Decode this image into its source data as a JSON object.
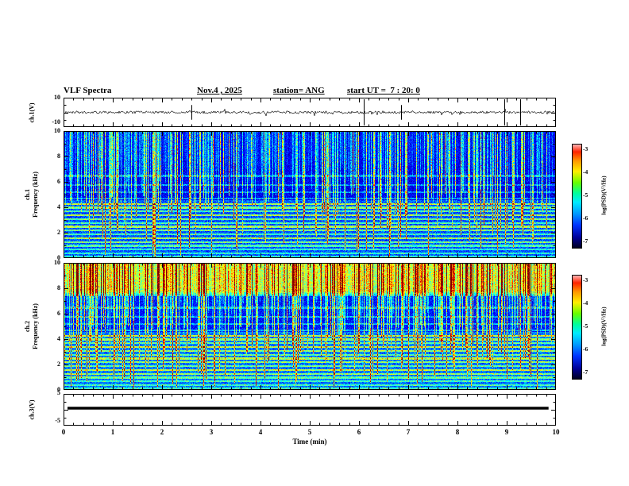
{
  "header": {
    "title": "VLF Spectra",
    "date": "Nov.4 , 2025",
    "station": "station= ANG",
    "start_ut": "start UT =  7 : 20: 0"
  },
  "panels": {
    "wave1": {
      "ylabel": "ch.1(V)",
      "ymax": "10",
      "ymin": "-10"
    },
    "spec1": {
      "ch": "ch.1",
      "ylabel": "Frequency (kHz)",
      "yticks": [
        "10",
        "8",
        "6",
        "4",
        "2",
        "0"
      ]
    },
    "spec2": {
      "ch": "ch.2",
      "ylabel": "Frequency (kHz)",
      "yticks": [
        "10",
        "8",
        "6",
        "4",
        "2",
        "0"
      ]
    },
    "wave3": {
      "ylabel": "ch.3(V)",
      "ymax": "5",
      "ymin": "-5"
    }
  },
  "xaxis": {
    "label": "Time (min)",
    "ticks": [
      "0",
      "1",
      "2",
      "3",
      "4",
      "5",
      "6",
      "7",
      "8",
      "9",
      "10"
    ]
  },
  "colorbar": {
    "label": "log(PSD)(V²/Hz)",
    "ticks": [
      "-3",
      "-4",
      "-5",
      "-6",
      "-7"
    ]
  },
  "chart_data": [
    {
      "type": "line",
      "panel": "ch.1 waveform",
      "ylabel": "ch.1(V)",
      "xlim_min": [
        0,
        10
      ],
      "ylim_V": [
        -10,
        10
      ],
      "description": "low-amplitude broadband noise around 0 V with impulsive vertical spikes",
      "spike_times_min": [
        6.1,
        8.95,
        9.27
      ],
      "minor_spike_times_min": [
        2.6,
        6.85
      ]
    },
    {
      "type": "heatmap",
      "panel": "ch.1 spectrogram",
      "xlabel": "Time (min)",
      "ylabel": "Frequency (kHz)",
      "xlim_min": [
        0,
        10
      ],
      "ylim_kHz": [
        0,
        10
      ],
      "colormap": "jet",
      "value_label": "log(PSD)(V²/Hz)",
      "value_range": [
        -7,
        -3
      ],
      "features": {
        "background_level": -6.8,
        "vertical_sferic_streaks": "dense impulsive streaks, strongest above 4 kHz",
        "horizontal_line_freqs_kHz": [
          0.15,
          0.4,
          0.7,
          1.0,
          1.3,
          1.6,
          1.9,
          2.2,
          2.5,
          2.8,
          3.1,
          3.4,
          3.7,
          4.0,
          4.3,
          4.7,
          5.2,
          5.8,
          6.5
        ]
      }
    },
    {
      "type": "heatmap",
      "panel": "ch.2 spectrogram",
      "xlabel": "Time (min)",
      "ylabel": "Frequency (kHz)",
      "xlim_min": [
        0,
        10
      ],
      "ylim_kHz": [
        0,
        10
      ],
      "colormap": "jet",
      "value_label": "log(PSD)(V²/Hz)",
      "value_range": [
        -7,
        -3
      ],
      "features": {
        "background_level": -6.7,
        "vertical_sferic_streaks": "dense impulsive streaks across 2-8 kHz",
        "strong_band_kHz": [
          7.4,
          10
        ],
        "band_level": -4.2,
        "horizontal_line_freqs_kHz": [
          0.15,
          0.4,
          0.7,
          1.0,
          1.3,
          1.6,
          1.9,
          2.2,
          2.5,
          2.8,
          3.1,
          3.4,
          3.7,
          4.0,
          4.3,
          4.7,
          5.2,
          5.8,
          6.5
        ]
      }
    },
    {
      "type": "line",
      "panel": "ch.3 waveform",
      "ylabel": "ch.3(V)",
      "xlim_min": [
        0,
        10
      ],
      "ylim_V": [
        -5,
        5
      ],
      "description": "constant flat level of about +0.5 V across nearly the full record"
    }
  ]
}
